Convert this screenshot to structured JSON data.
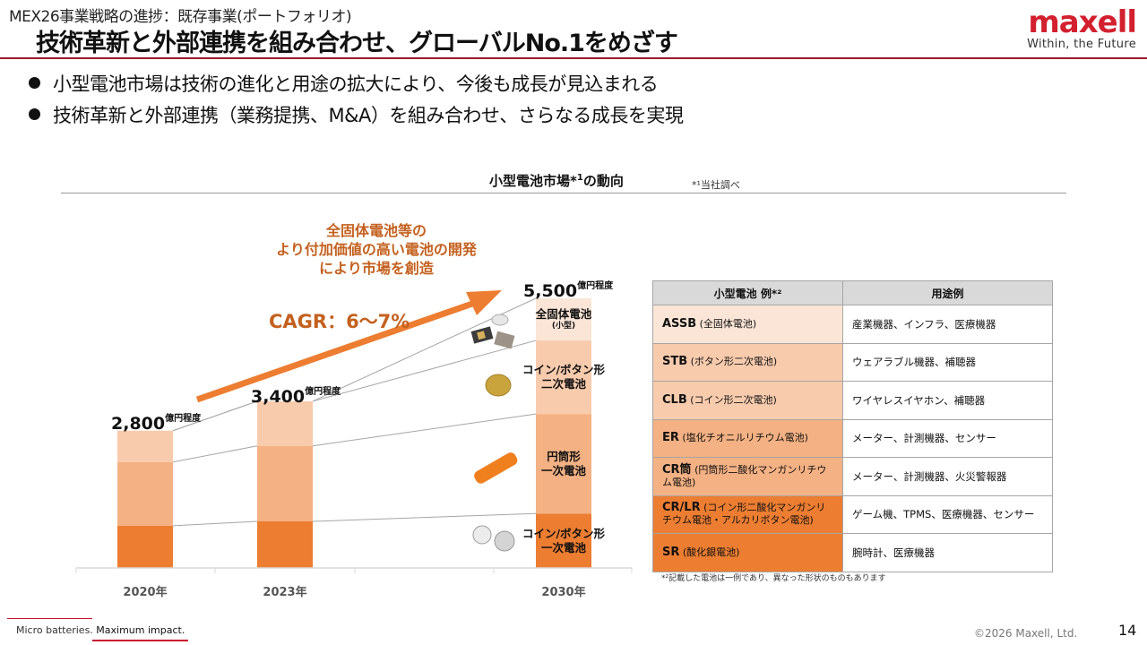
{
  "header": {
    "subtitle": "MEX26事業戦略の進捗：既存事業(ポートフォリオ)",
    "title": "技術革新と外部連携を組み合わせ、グローバルNo.1をめざす",
    "logo_word": "maxell",
    "logo_tagline": "Within, the Future"
  },
  "bullets": [
    "小型電池市場は技術の進化と用途の拡大により、今後も成長が見込まれる",
    "技術革新と外部連携（業務提携、M&A）を組み合わせ、さらなる成長を実現"
  ],
  "chart_section": {
    "title_main": "小型電池市場*",
    "title_sup": "1",
    "title_tail": "の動向",
    "note": "*¹当社調べ",
    "callout": [
      "全固体電池等の",
      "より付加価値の高い電池の開発",
      "により市場を創造"
    ],
    "cagr": "CAGR：6〜7%",
    "colors": {
      "coin_button_primary": "#ed7d31",
      "cylindrical_primary": "#f4b183",
      "coin_button_secondary": "#f8cbad",
      "assb": "#fbe5d6",
      "arrow": "#ed7d31",
      "callout_text": "#c4611f"
    }
  },
  "chart_data": {
    "type": "bar",
    "stacked": true,
    "title": "小型電池市場*1の動向",
    "xlabel": "",
    "ylabel": "",
    "unit": "億円",
    "categories": [
      "2020年",
      "2023年",
      "2030年"
    ],
    "totals": [
      2800,
      3400,
      5500
    ],
    "total_labels": [
      "2,800",
      "3,400",
      "5,500"
    ],
    "total_suffix": "億円程度",
    "series": [
      {
        "name": "コイン/ボタン形一次電池",
        "values": [
          860,
          950,
          1110
        ]
      },
      {
        "name": "円筒形一次電池",
        "values": [
          1300,
          1540,
          2030
        ]
      },
      {
        "name": "コイン/ボタン形二次電池",
        "values": [
          640,
          910,
          1500
        ]
      },
      {
        "name": "全固体電池(小型)",
        "values": [
          0,
          0,
          860
        ]
      }
    ],
    "segment_labels_2030": [
      {
        "lines": [
          "コイン/ボタン形",
          "一次電池"
        ],
        "sub": ""
      },
      {
        "lines": [
          "円筒形",
          "一次電池"
        ],
        "sub": ""
      },
      {
        "lines": [
          "コイン/ボタン形",
          "二次電池"
        ],
        "sub": ""
      },
      {
        "lines": [
          "全固体電池"
        ],
        "sub": "(小型)"
      }
    ],
    "ylim": [
      0,
      5500
    ],
    "grid": false,
    "annotation": "CAGR：6〜7%"
  },
  "table": {
    "headers": [
      "小型電池 例*²",
      "用途例"
    ],
    "rows": [
      {
        "code": "ASSB",
        "desc": "(全固体電池)",
        "use": "産業機器、インフラ、医療機器",
        "color": "#fbe5d6"
      },
      {
        "code": "STB",
        "desc": "(ボタン形二次電池)",
        "use": "ウェアラブル機器、補聴器",
        "color": "#f8cbad"
      },
      {
        "code": "CLB",
        "desc": "(コイン形二次電池)",
        "use": "ワイヤレスイヤホン、補聴器",
        "color": "#f8cbad"
      },
      {
        "code": "ER",
        "desc": "(塩化チオニルリチウム電池)",
        "use": "メーター、計測機器、センサー",
        "color": "#f4b183"
      },
      {
        "code": "CR筒",
        "desc": "(円筒形二酸化マンガンリチウム電池)",
        "use": "メーター、計測機器、火災警報器",
        "color": "#f4b183"
      },
      {
        "code": "CR/LR",
        "desc": "(コイン形二酸化マンガンリチウム電池・アルカリボタン電池)",
        "use": "ゲーム機、TPMS、医療機器、センサー",
        "color": "#ed7d31"
      },
      {
        "code": "SR",
        "desc": "(酸化銀電池)",
        "use": "腕時計、医療機器",
        "color": "#ed7d31"
      }
    ],
    "note": "*²記載した電池は一例であり、異なった形状のものもあります"
  },
  "footer": {
    "tagline_part1": "Micro batteries. ",
    "tagline_part2": "Maximum impact.",
    "copyright": "©2026 Maxell, Ltd.",
    "page_number": "14"
  }
}
